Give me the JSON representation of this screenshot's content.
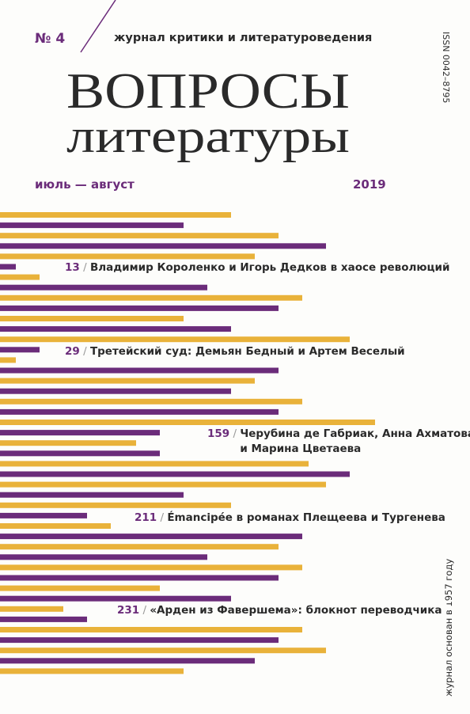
{
  "header": {
    "issue": "№ 4",
    "subtitle": "журнал критики и литературоведения",
    "title_line1": "ВОПРОСЫ",
    "title_line2": "литературы",
    "months": "июль — август",
    "year": "2019",
    "issn": "ISSN 0042–8795"
  },
  "contents": [
    {
      "page": "13",
      "title": [
        "Владимир Короленко и Игорь Дедков в хаосе революций"
      ]
    },
    {
      "page": "29",
      "title": [
        "Третейский суд: Демьян Бедный и Артем Веселый"
      ]
    },
    {
      "page": "159",
      "title": [
        "Черубина де Габриак, Анна Ахматова",
        "и Марина Цветаева"
      ]
    },
    {
      "page": "211",
      "title": [
        "Émancipée в романах Плещеева и Тургенева"
      ]
    },
    {
      "page": "231",
      "title": [
        "«Арден из Фавершема»: блокнот переводчика"
      ]
    }
  ],
  "footer": {
    "founded": "журнал основан в 1957 году"
  }
}
